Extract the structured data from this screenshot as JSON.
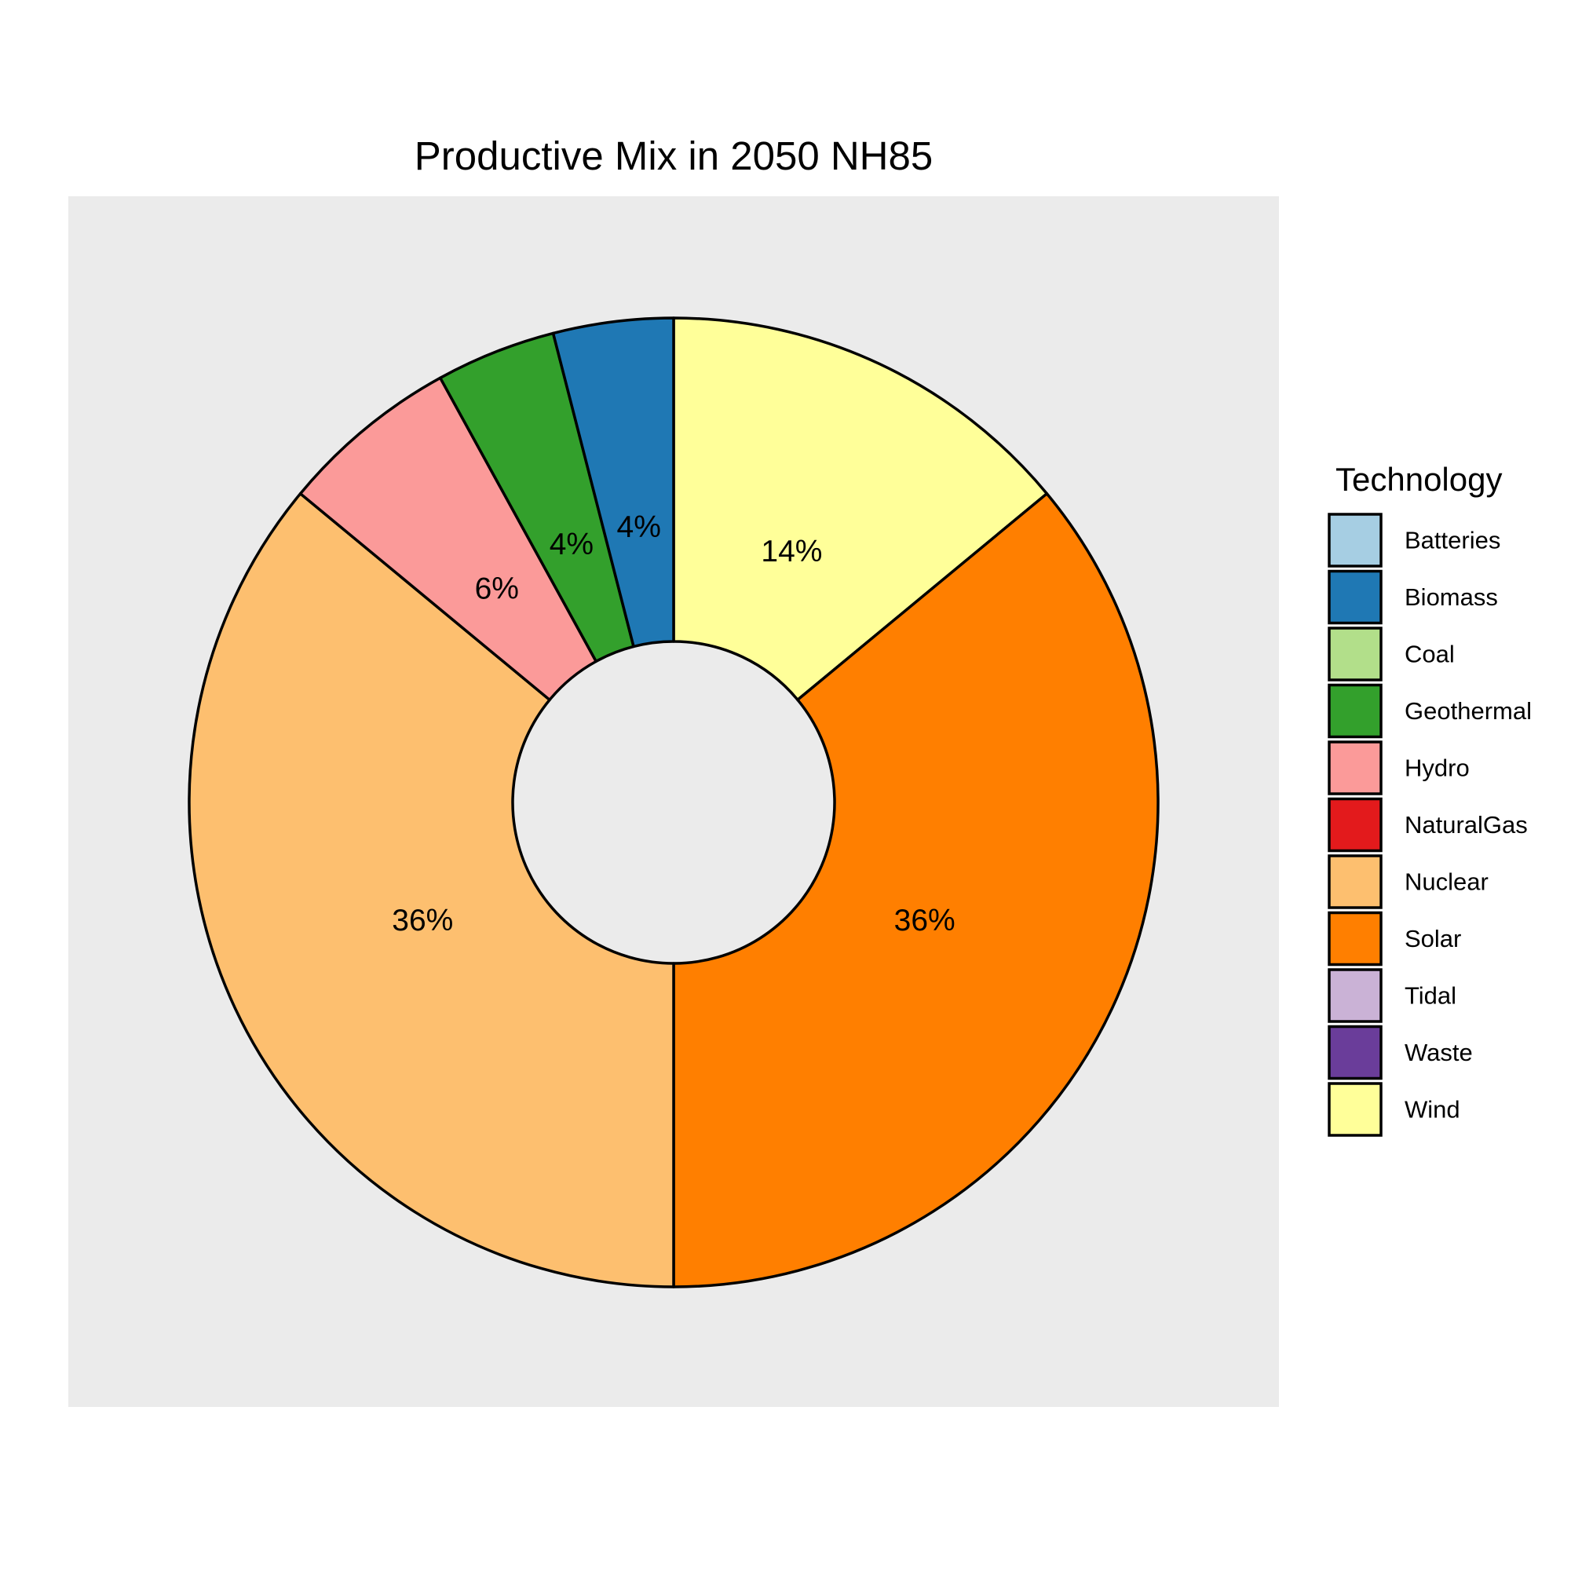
{
  "chart_data": {
    "type": "pie",
    "subtype": "donut",
    "title": "Productive Mix in 2050 NH85",
    "legend_title": "Technology",
    "legend_position": "right",
    "background_color": "#EBEBEB",
    "slices": [
      {
        "name": "Wind",
        "value": 14,
        "label": "14%",
        "color": "#FFFF99"
      },
      {
        "name": "Solar",
        "value": 36,
        "label": "36%",
        "color": "#FF7F00"
      },
      {
        "name": "Nuclear",
        "value": 36,
        "label": "36%",
        "color": "#FDBF6F"
      },
      {
        "name": "Hydro",
        "value": 6,
        "label": "6%",
        "color": "#FB9A99"
      },
      {
        "name": "Geothermal",
        "value": 4,
        "label": "4%",
        "color": "#33A02C"
      },
      {
        "name": "Biomass",
        "value": 4,
        "label": "4%",
        "color": "#1F78B4"
      }
    ],
    "legend": [
      {
        "name": "Batteries",
        "color": "#A6CEE3"
      },
      {
        "name": "Biomass",
        "color": "#1F78B4"
      },
      {
        "name": "Coal",
        "color": "#B2DF8A"
      },
      {
        "name": "Geothermal",
        "color": "#33A02C"
      },
      {
        "name": "Hydro",
        "color": "#FB9A99"
      },
      {
        "name": "NaturalGas",
        "color": "#E31A1C"
      },
      {
        "name": "Nuclear",
        "color": "#FDBF6F"
      },
      {
        "name": "Solar",
        "color": "#FF7F00"
      },
      {
        "name": "Tidal",
        "color": "#CAB2D6"
      },
      {
        "name": "Waste",
        "color": "#6A3D9A"
      },
      {
        "name": "Wind",
        "color": "#FFFF99"
      }
    ]
  }
}
